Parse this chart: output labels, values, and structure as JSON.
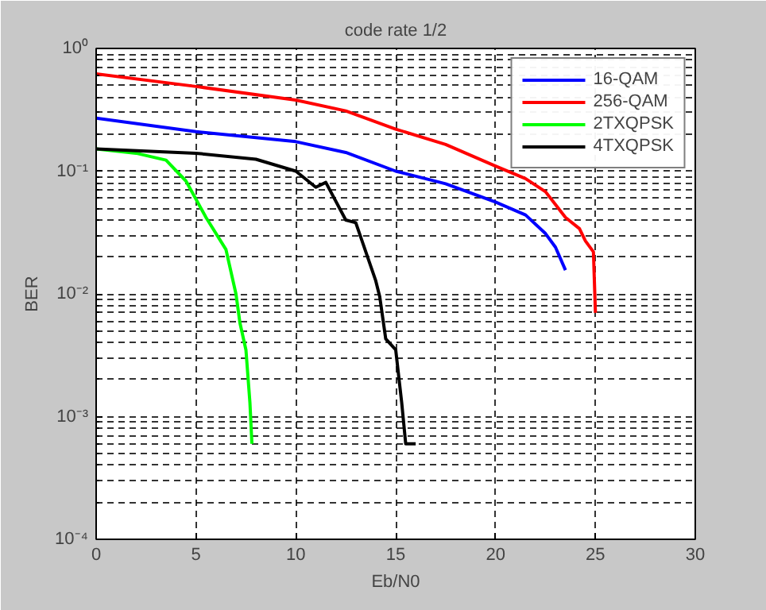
{
  "chart_data": {
    "type": "line",
    "title": "code rate 1/2",
    "xlabel": "Eb/N0",
    "ylabel": "BER",
    "log": "y",
    "xlim": [
      0,
      30
    ],
    "xticks": [
      0,
      5,
      10,
      15,
      20,
      25,
      30
    ],
    "ylim": [
      0.0001,
      1
    ],
    "yticks": [
      {
        "value": 0.0001,
        "label": "10⁻⁴"
      },
      {
        "value": 0.001,
        "label": "10⁻³"
      },
      {
        "value": 0.01,
        "label": "10⁻²"
      },
      {
        "value": 0.1,
        "label": "10⁻¹"
      },
      {
        "value": 1,
        "label": "10⁰"
      }
    ],
    "grid": true,
    "legend": "top right",
    "line_style": "solid",
    "marker": "none",
    "series": [
      {
        "name": "16-QAM",
        "color": "#0000ff",
        "x": [
          0,
          5,
          10,
          12.5,
          15,
          17.5,
          20,
          21.5,
          22.5,
          23,
          23.5
        ],
        "values": [
          0.27,
          0.21,
          0.174,
          0.142,
          0.1,
          0.079,
          0.056,
          0.044,
          0.031,
          0.024,
          0.0156
        ]
      },
      {
        "name": "256-QAM",
        "color": "#ff0000",
        "x": [
          0,
          5,
          10,
          12.5,
          15,
          17.5,
          20,
          21.5,
          22.5,
          23.5,
          24.2,
          24.5,
          24.9,
          25
        ],
        "values": [
          0.62,
          0.49,
          0.38,
          0.31,
          0.22,
          0.165,
          0.11,
          0.087,
          0.068,
          0.042,
          0.034,
          0.027,
          0.022,
          0.007
        ]
      },
      {
        "name": "2TXQPSK",
        "color": "#00ff00",
        "x": [
          0,
          2,
          3.5,
          4.5,
          5.5,
          6.5,
          7,
          7.2,
          7.5,
          7.7,
          7.8
        ],
        "values": [
          0.152,
          0.14,
          0.123,
          0.083,
          0.042,
          0.023,
          0.01,
          0.0058,
          0.0035,
          0.0013,
          0.0006
        ]
      },
      {
        "name": "4TXQPSK",
        "color": "#000000",
        "x": [
          0,
          5,
          8,
          10,
          11,
          11.5,
          12.5,
          13,
          14,
          14.2,
          14.5,
          15,
          15.3,
          15.5,
          16
        ],
        "values": [
          0.152,
          0.14,
          0.125,
          0.1,
          0.074,
          0.081,
          0.04,
          0.038,
          0.0128,
          0.0095,
          0.0043,
          0.0035,
          0.0013,
          0.0006,
          0.0006
        ]
      }
    ]
  }
}
